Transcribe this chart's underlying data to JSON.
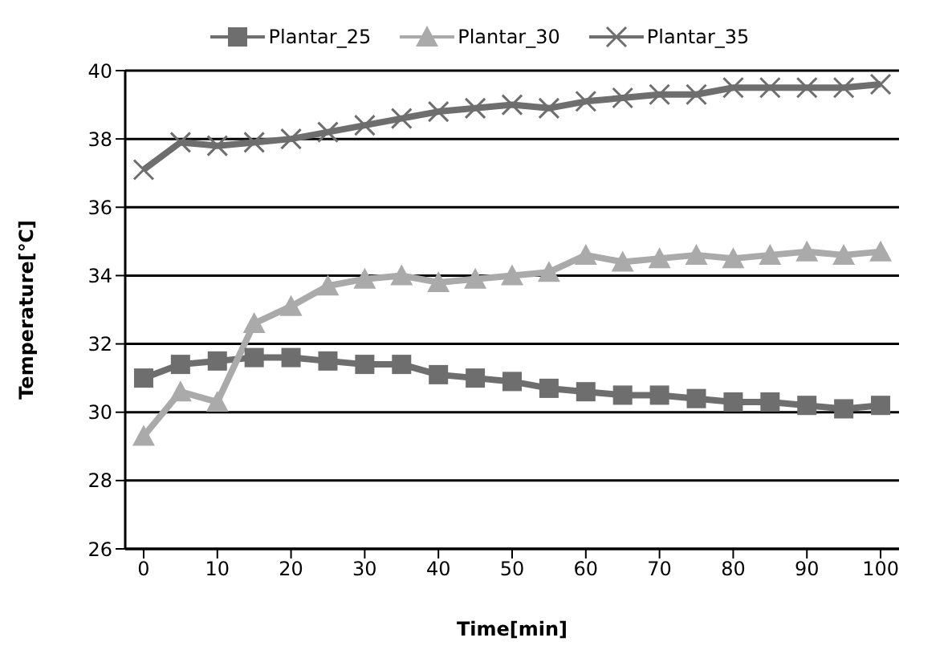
{
  "chart_data": {
    "type": "line",
    "xlabel": "Time[min]",
    "ylabel": "Temperature[℃]",
    "x": [
      0,
      5,
      10,
      15,
      20,
      25,
      30,
      35,
      40,
      45,
      50,
      55,
      60,
      65,
      70,
      75,
      80,
      85,
      90,
      95,
      100
    ],
    "xlim": [
      -2.5,
      102.5
    ],
    "xticks": [
      0,
      10,
      20,
      30,
      40,
      50,
      60,
      70,
      80,
      90,
      100
    ],
    "ylim": [
      26,
      40
    ],
    "yticks": [
      26,
      28,
      30,
      32,
      34,
      36,
      38,
      40
    ],
    "grid": "y",
    "legend": "top",
    "series": [
      {
        "name": "Plantar_25",
        "color": "#6e6e6e",
        "marker": "square",
        "values": [
          31.0,
          31.4,
          31.5,
          31.6,
          31.6,
          31.5,
          31.4,
          31.4,
          31.1,
          31.0,
          30.9,
          30.7,
          30.6,
          30.5,
          30.5,
          30.4,
          30.3,
          30.3,
          30.2,
          30.1,
          30.2
        ]
      },
      {
        "name": "Plantar_30",
        "color": "#aaaaaa",
        "marker": "triangle",
        "values": [
          29.3,
          30.6,
          30.3,
          32.6,
          33.1,
          33.7,
          33.9,
          34.0,
          33.8,
          33.9,
          34.0,
          34.1,
          34.6,
          34.4,
          34.5,
          34.6,
          34.5,
          34.6,
          34.7,
          34.6,
          34.7
        ]
      },
      {
        "name": "Plantar_35",
        "color": "#6e6e6e",
        "marker": "cross",
        "values": [
          37.1,
          37.9,
          37.8,
          37.9,
          38.0,
          38.2,
          38.4,
          38.6,
          38.8,
          38.9,
          39.0,
          38.9,
          39.1,
          39.2,
          39.3,
          39.3,
          39.5,
          39.5,
          39.5,
          39.5,
          39.6
        ]
      }
    ]
  }
}
